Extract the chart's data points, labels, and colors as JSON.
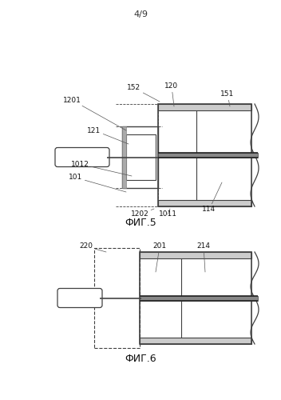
{
  "page_label": "4/9",
  "fig5_label": "ФИГ.5",
  "fig6_label": "ФИГ.6",
  "bg_color": "#ffffff",
  "line_color": "#404040",
  "dark_color": "#222222",
  "gray_fill": "#cccccc",
  "light_gray": "#e8e8e8"
}
